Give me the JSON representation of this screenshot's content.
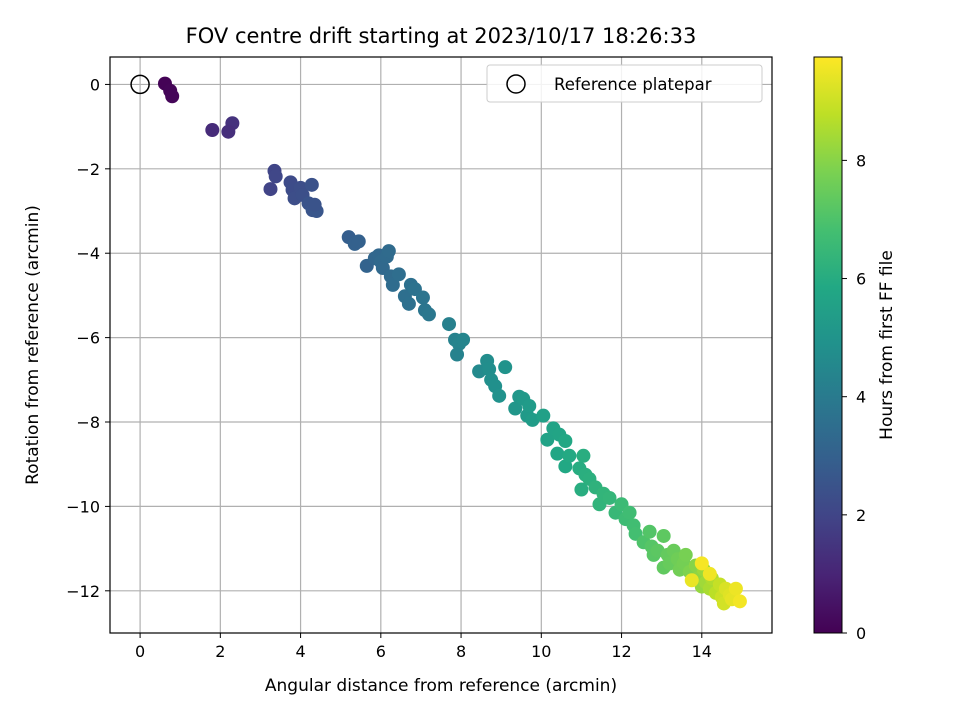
{
  "chart_data": {
    "type": "scatter",
    "title": "FOV centre drift starting at 2023/10/17 18:26:33",
    "xlabel": "Angular distance from reference (arcmin)",
    "ylabel": "Rotation from reference (arcmin)",
    "xlim": [
      -0.75,
      15.75
    ],
    "ylim": [
      -13.0,
      0.65
    ],
    "xticks": [
      0,
      2,
      4,
      6,
      8,
      10,
      12,
      14
    ],
    "xtick_labels": [
      "0",
      "2",
      "4",
      "6",
      "8",
      "10",
      "12",
      "14"
    ],
    "yticks": [
      0,
      -2,
      -4,
      -6,
      -8,
      -10,
      -12
    ],
    "ytick_labels": [
      "0",
      "−2",
      "−4",
      "−6",
      "−8",
      "−10",
      "−12"
    ],
    "grid": true,
    "legend": {
      "placement": "top-right",
      "entries": [
        {
          "label": "Reference platepar",
          "marker": "open-circle"
        }
      ]
    },
    "reference_point": {
      "x": 0,
      "y": 0
    },
    "colorbar": {
      "label": "Hours from first FF file",
      "colormap": "viridis",
      "range": [
        0,
        9.75
      ],
      "ticks": [
        0,
        2,
        4,
        6,
        8
      ],
      "tick_labels": [
        "0",
        "2",
        "4",
        "6",
        "8"
      ]
    },
    "points": [
      [
        0.62,
        0.02,
        0.05
      ],
      [
        0.75,
        -0.15,
        0.1
      ],
      [
        0.8,
        -0.28,
        0.15
      ],
      [
        1.8,
        -1.08,
        1.2
      ],
      [
        2.3,
        -0.92,
        1.4
      ],
      [
        2.2,
        -1.12,
        1.3
      ],
      [
        3.35,
        -2.05,
        2.0
      ],
      [
        3.38,
        -2.18,
        2.05
      ],
      [
        3.25,
        -2.48,
        1.95
      ],
      [
        3.75,
        -2.32,
        2.2
      ],
      [
        3.8,
        -2.5,
        2.25
      ],
      [
        3.85,
        -2.7,
        2.3
      ],
      [
        4.0,
        -2.45,
        2.3
      ],
      [
        4.05,
        -2.62,
        2.35
      ],
      [
        4.2,
        -2.82,
        2.5
      ],
      [
        4.3,
        -2.98,
        2.55
      ],
      [
        4.4,
        -3.0,
        2.6
      ],
      [
        4.28,
        -2.38,
        2.45
      ],
      [
        4.35,
        -2.85,
        2.5
      ],
      [
        5.2,
        -3.62,
        2.9
      ],
      [
        5.35,
        -3.78,
        3.0
      ],
      [
        5.45,
        -3.72,
        3.0
      ],
      [
        5.65,
        -4.3,
        3.1
      ],
      [
        5.85,
        -4.12,
        3.2
      ],
      [
        5.95,
        -4.05,
        3.25
      ],
      [
        6.0,
        -4.2,
        3.3
      ],
      [
        6.05,
        -4.35,
        3.3
      ],
      [
        6.15,
        -4.08,
        3.35
      ],
      [
        6.2,
        -3.95,
        3.4
      ],
      [
        6.25,
        -4.55,
        3.4
      ],
      [
        6.3,
        -4.75,
        3.45
      ],
      [
        6.45,
        -4.5,
        3.5
      ],
      [
        6.6,
        -5.02,
        3.55
      ],
      [
        6.7,
        -5.2,
        3.6
      ],
      [
        6.75,
        -4.75,
        3.6
      ],
      [
        6.85,
        -4.85,
        3.65
      ],
      [
        7.05,
        -5.05,
        3.75
      ],
      [
        7.1,
        -5.35,
        3.8
      ],
      [
        7.2,
        -5.45,
        3.85
      ],
      [
        7.7,
        -5.68,
        4.2
      ],
      [
        7.85,
        -6.05,
        4.3
      ],
      [
        7.95,
        -6.15,
        4.35
      ],
      [
        8.05,
        -6.05,
        4.4
      ],
      [
        7.9,
        -6.4,
        4.3
      ],
      [
        8.45,
        -6.8,
        4.6
      ],
      [
        8.65,
        -6.55,
        4.7
      ],
      [
        8.7,
        -6.75,
        4.75
      ],
      [
        8.75,
        -7.0,
        4.8
      ],
      [
        8.85,
        -7.15,
        4.85
      ],
      [
        8.95,
        -7.38,
        4.9
      ],
      [
        9.1,
        -6.7,
        4.95
      ],
      [
        9.35,
        -7.68,
        5.1
      ],
      [
        9.45,
        -7.4,
        5.15
      ],
      [
        9.55,
        -7.45,
        5.2
      ],
      [
        9.65,
        -7.85,
        5.25
      ],
      [
        9.7,
        -7.62,
        5.3
      ],
      [
        9.78,
        -7.95,
        5.35
      ],
      [
        10.05,
        -7.85,
        5.5
      ],
      [
        10.15,
        -8.42,
        5.6
      ],
      [
        10.3,
        -8.15,
        5.65
      ],
      [
        10.45,
        -8.3,
        5.7
      ],
      [
        10.4,
        -8.75,
        5.75
      ],
      [
        10.6,
        -8.45,
        5.8
      ],
      [
        10.6,
        -9.05,
        5.85
      ],
      [
        10.7,
        -8.8,
        5.9
      ],
      [
        10.95,
        -9.1,
        6.0
      ],
      [
        11.05,
        -8.8,
        6.05
      ],
      [
        11.1,
        -9.25,
        6.1
      ],
      [
        11.0,
        -9.6,
        6.05
      ],
      [
        11.2,
        -9.35,
        6.15
      ],
      [
        11.35,
        -9.55,
        6.25
      ],
      [
        11.45,
        -9.95,
        6.3
      ],
      [
        11.55,
        -9.7,
        6.35
      ],
      [
        11.7,
        -9.8,
        6.4
      ],
      [
        11.85,
        -10.15,
        6.5
      ],
      [
        12.0,
        -9.95,
        6.6
      ],
      [
        12.1,
        -10.3,
        6.65
      ],
      [
        12.2,
        -10.15,
        6.7
      ],
      [
        12.3,
        -10.45,
        6.75
      ],
      [
        12.35,
        -10.65,
        6.8
      ],
      [
        12.55,
        -10.85,
        7.0
      ],
      [
        12.7,
        -10.6,
        7.1
      ],
      [
        12.75,
        -10.95,
        7.15
      ],
      [
        12.8,
        -11.15,
        7.2
      ],
      [
        12.9,
        -11.05,
        7.25
      ],
      [
        13.05,
        -10.7,
        7.3
      ],
      [
        13.05,
        -11.45,
        7.35
      ],
      [
        13.15,
        -11.15,
        7.4
      ],
      [
        13.2,
        -11.35,
        7.45
      ],
      [
        13.3,
        -11.05,
        7.5
      ],
      [
        13.4,
        -11.25,
        7.6
      ],
      [
        13.45,
        -11.5,
        7.65
      ],
      [
        13.55,
        -11.35,
        7.7
      ],
      [
        13.6,
        -11.15,
        7.75
      ],
      [
        13.7,
        -11.55,
        7.85
      ],
      [
        13.85,
        -11.4,
        8.0
      ],
      [
        13.9,
        -11.7,
        8.1
      ],
      [
        14.0,
        -11.9,
        8.2
      ],
      [
        14.05,
        -11.5,
        8.3
      ],
      [
        14.1,
        -11.8,
        8.35
      ],
      [
        14.2,
        -11.95,
        8.5
      ],
      [
        14.25,
        -11.7,
        8.6
      ],
      [
        14.35,
        -12.05,
        8.75
      ],
      [
        14.45,
        -11.85,
        8.9
      ],
      [
        14.5,
        -12.15,
        9.0
      ],
      [
        14.55,
        -12.3,
        9.1
      ],
      [
        14.6,
        -11.95,
        9.2
      ],
      [
        14.7,
        -12.1,
        9.3
      ],
      [
        14.75,
        -12.2,
        9.4
      ],
      [
        14.85,
        -11.95,
        9.5
      ],
      [
        14.95,
        -12.25,
        9.6
      ],
      [
        14.0,
        -11.35,
        9.65
      ],
      [
        14.2,
        -11.6,
        9.55
      ],
      [
        13.75,
        -11.75,
        9.45
      ]
    ]
  }
}
